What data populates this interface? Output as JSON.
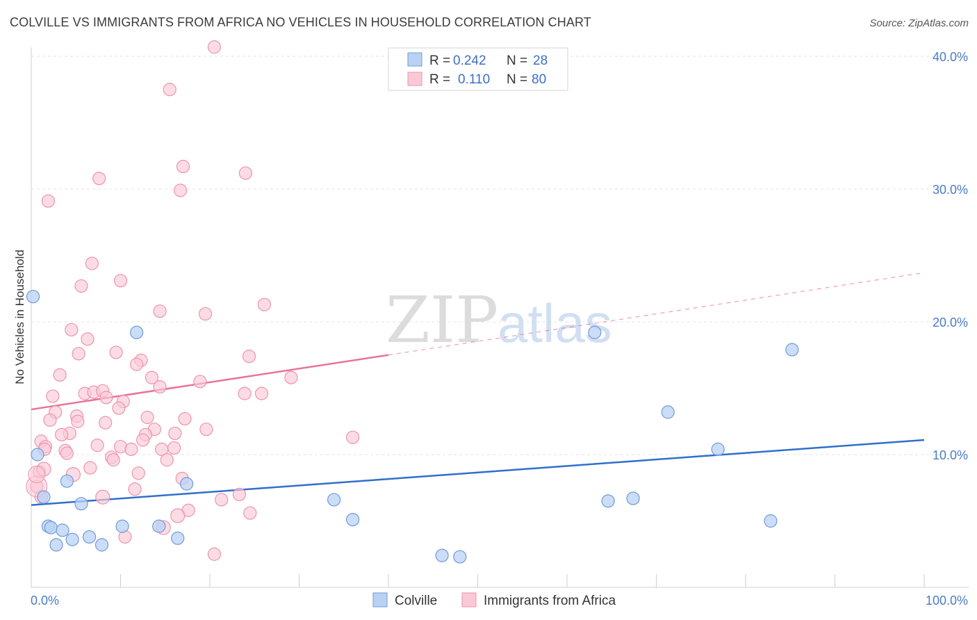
{
  "title": "COLVILLE VS IMMIGRANTS FROM AFRICA NO VEHICLES IN HOUSEHOLD CORRELATION CHART",
  "source": "Source: ZipAtlas.com",
  "watermark": {
    "zip": "ZIP",
    "atlas": "atlas"
  },
  "colors": {
    "blue_fill": "#b9d2f4",
    "blue_stroke": "#6f9bd8",
    "blue_line": "#2f6fcc",
    "pink_fill": "#f9c9d7",
    "pink_stroke": "#ee93ad",
    "pink_line": "#e8739a",
    "grid": "#e3e3e3",
    "axis_label": "#4a7cc9"
  },
  "legend": {
    "rows": [
      {
        "r_label": "R =",
        "r_value": "0.242",
        "n_label": "N =",
        "n_value": "28"
      },
      {
        "r_label": "R =",
        "r_value": "0.110",
        "n_label": "N =",
        "n_value": "80"
      }
    ]
  },
  "bottom_legend": [
    "Colville",
    "Immigrants from Africa"
  ],
  "chart_data": {
    "type": "scatter",
    "title": "COLVILLE VS IMMIGRANTS FROM AFRICA NO VEHICLES IN HOUSEHOLD CORRELATION CHART",
    "xlabel": "",
    "ylabel": "No Vehicles in Household",
    "xlim": [
      0,
      100
    ],
    "ylim": [
      0,
      40
    ],
    "x_tick_labels": [
      "0.0%",
      "100.0%"
    ],
    "y_ticks": [
      10,
      20,
      30,
      40
    ],
    "y_tick_labels": [
      "10.0%",
      "20.0%",
      "30.0%",
      "40.0%"
    ],
    "grid": true,
    "legend_position": "top-center",
    "series": [
      {
        "name": "Colville",
        "color": "#6f9bd8",
        "trend": {
          "x": [
            0,
            100
          ],
          "y": [
            6.2,
            11.1
          ]
        },
        "points": [
          [
            0.2,
            21.9
          ],
          [
            0.7,
            10.0
          ],
          [
            1.4,
            6.8
          ],
          [
            1.9,
            4.6
          ],
          [
            2.2,
            4.5
          ],
          [
            2.8,
            3.2
          ],
          [
            3.5,
            4.3
          ],
          [
            4.0,
            8.0
          ],
          [
            4.6,
            3.6
          ],
          [
            5.6,
            6.3
          ],
          [
            6.5,
            3.8
          ],
          [
            7.9,
            3.2
          ],
          [
            10.2,
            4.6
          ],
          [
            11.8,
            19.2
          ],
          [
            14.3,
            4.6
          ],
          [
            16.4,
            3.7
          ],
          [
            17.4,
            7.8
          ],
          [
            33.9,
            6.6
          ],
          [
            36.0,
            5.1
          ],
          [
            46.0,
            2.4
          ],
          [
            48.0,
            2.3
          ],
          [
            63.1,
            19.2
          ],
          [
            64.6,
            6.5
          ],
          [
            67.4,
            6.7
          ],
          [
            71.3,
            13.2
          ],
          [
            76.9,
            10.4
          ],
          [
            82.8,
            5.0
          ],
          [
            85.2,
            17.9
          ]
        ]
      },
      {
        "name": "Immigrants from Africa",
        "color": "#ee93ad",
        "trend": {
          "x": [
            0,
            40
          ],
          "y": [
            13.4,
            17.5
          ]
        },
        "trend_extension": {
          "x": [
            40,
            100
          ],
          "y": [
            17.5,
            23.7
          ]
        },
        "points": [
          [
            20.5,
            40.7
          ],
          [
            15.5,
            37.5
          ],
          [
            17.0,
            31.7
          ],
          [
            24.0,
            31.2
          ],
          [
            7.6,
            30.8
          ],
          [
            16.7,
            29.9
          ],
          [
            1.9,
            29.1
          ],
          [
            6.8,
            24.4
          ],
          [
            5.6,
            22.7
          ],
          [
            10.0,
            23.1
          ],
          [
            14.4,
            20.8
          ],
          [
            19.5,
            20.6
          ],
          [
            26.1,
            21.3
          ],
          [
            4.5,
            19.4
          ],
          [
            6.3,
            18.7
          ],
          [
            5.3,
            17.6
          ],
          [
            9.5,
            17.7
          ],
          [
            12.3,
            17.1
          ],
          [
            24.4,
            17.4
          ],
          [
            11.8,
            16.8
          ],
          [
            3.2,
            16.0
          ],
          [
            29.1,
            15.8
          ],
          [
            13.5,
            15.8
          ],
          [
            18.9,
            15.5
          ],
          [
            14.4,
            15.1
          ],
          [
            2.4,
            14.4
          ],
          [
            6.0,
            14.6
          ],
          [
            7.0,
            14.7
          ],
          [
            8.0,
            14.8
          ],
          [
            8.4,
            14.3
          ],
          [
            10.3,
            14.0
          ],
          [
            23.9,
            14.6
          ],
          [
            25.8,
            14.6
          ],
          [
            2.7,
            13.2
          ],
          [
            5.1,
            12.9
          ],
          [
            5.2,
            12.5
          ],
          [
            8.3,
            12.4
          ],
          [
            9.8,
            13.5
          ],
          [
            13.0,
            12.8
          ],
          [
            17.2,
            12.7
          ],
          [
            2.1,
            12.6
          ],
          [
            13.8,
            11.9
          ],
          [
            19.6,
            11.9
          ],
          [
            4.3,
            11.6
          ],
          [
            3.4,
            11.5
          ],
          [
            12.8,
            11.5
          ],
          [
            16.1,
            11.6
          ],
          [
            1.1,
            11.0
          ],
          [
            1.6,
            10.6
          ],
          [
            7.4,
            10.7
          ],
          [
            10.0,
            10.6
          ],
          [
            11.2,
            10.4
          ],
          [
            12.5,
            11.1
          ],
          [
            14.6,
            10.4
          ],
          [
            16.0,
            10.5
          ],
          [
            36.0,
            11.3
          ],
          [
            1.5,
            10.4
          ],
          [
            3.8,
            10.3
          ],
          [
            4.0,
            10.1
          ],
          [
            9.0,
            9.8
          ],
          [
            9.2,
            9.6
          ],
          [
            15.2,
            9.6
          ],
          [
            6.6,
            9.0
          ],
          [
            12.0,
            8.6
          ],
          [
            0.9,
            8.7
          ],
          [
            16.9,
            8.2
          ],
          [
            0.6,
            7.6
          ],
          [
            11.6,
            7.4
          ],
          [
            1.1,
            6.8
          ],
          [
            21.3,
            6.6
          ],
          [
            23.3,
            7.0
          ],
          [
            17.6,
            5.8
          ],
          [
            24.5,
            5.6
          ],
          [
            10.5,
            3.8
          ],
          [
            20.5,
            2.5
          ],
          [
            1.4,
            8.9
          ],
          [
            4.7,
            8.5
          ],
          [
            8.0,
            6.8
          ],
          [
            16.4,
            5.4
          ],
          [
            14.8,
            4.5
          ]
        ]
      }
    ]
  }
}
